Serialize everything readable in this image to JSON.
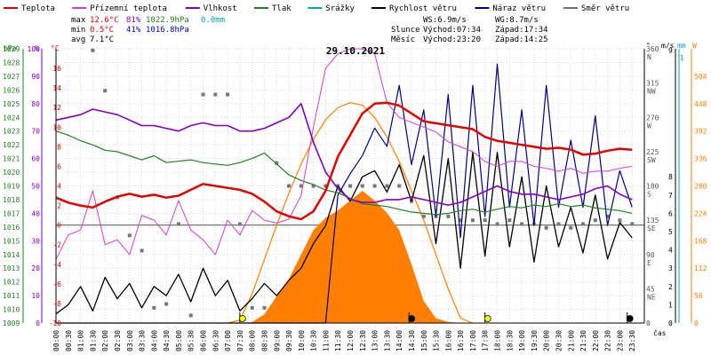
{
  "chart_data": {
    "type": "line",
    "title": "29.10.2021",
    "legend": [
      {
        "name": "Teplota",
        "color": "#e00000"
      },
      {
        "name": "Přízemní teplota",
        "color": "#d040d0"
      },
      {
        "name": "Vlhkost",
        "color": "#8000c0"
      },
      {
        "name": "Tlak",
        "color": "#208020"
      },
      {
        "name": "Srážky",
        "color": "#00a0c0"
      },
      {
        "name": "Rychlost větru",
        "color": "#000000"
      },
      {
        "name": "Náraz větru",
        "color": "#000080"
      },
      {
        "name": "Směr větru",
        "color": "#707070"
      }
    ],
    "stats": {
      "max_label": "max",
      "max_temp": "12.6°C",
      "max_hum": "81%",
      "max_press": "1022.9hPa",
      "max_rain": "0.0mm",
      "min_label": "min",
      "min_temp": "0.5°C",
      "min_hum": "41%",
      "min_press": "1016.8hPa",
      "avg_label": "avg",
      "avg_temp": "7.1°C",
      "ws": "WS:6.9m/s",
      "wg": "WG:8.7m/s",
      "sun_label": "Slunce",
      "sun_rise": "Východ:07:34",
      "sun_set": "Západ:17:34",
      "moon_label": "Měsíc",
      "moon_rise": "Východ:23:20",
      "moon_set": "Západ:14:25"
    },
    "axes": {
      "hpa_label": "hPa",
      "pct_label": "%",
      "degc_label": "°C",
      "deg_label": "°",
      "ms_label": "m/s",
      "mm_label": "mm",
      "wm2_label": "W",
      "hpa_ticks": [
        "1029",
        "1028",
        "1027",
        "1026",
        "1025",
        "1024",
        "1023",
        "1022",
        "1021",
        "1020",
        "1019",
        "1018",
        "1017",
        "1016",
        "1015",
        "1014",
        "1013",
        "1012",
        "1011",
        "1010",
        "1009"
      ],
      "pct_ticks": [
        "100",
        "90",
        "80",
        "70",
        "60",
        "50",
        "40",
        "30",
        "20",
        "10",
        "0"
      ],
      "degc_ticks": [
        "16",
        "14",
        "12",
        "10",
        "8",
        "6",
        "4",
        "2",
        "0",
        "-2",
        "-4",
        "-6",
        "-8",
        "-10"
      ],
      "dir_ticks": [
        {
          "deg": "360",
          "lbl": "N"
        },
        {
          "deg": "315",
          "lbl": "NW"
        },
        {
          "deg": "270",
          "lbl": "W"
        },
        {
          "deg": "225",
          "lbl": "SW"
        },
        {
          "deg": "180",
          "lbl": "S"
        },
        {
          "deg": "135",
          "lbl": "SE"
        },
        {
          "deg": "90",
          "lbl": "E"
        },
        {
          "deg": "45",
          "lbl": "NE"
        },
        {
          "deg": "0",
          "lbl": ""
        }
      ],
      "ms_ticks": [
        "9",
        "8",
        "7",
        "6",
        "5",
        "4",
        "3",
        "2",
        "1",
        "0"
      ],
      "mm_top": "1",
      "wm2_ticks": [
        "504",
        "448",
        "392",
        "336",
        "280",
        "224",
        "168",
        "112",
        "56",
        "0"
      ],
      "time_ticks": [
        "00:00",
        "00:30",
        "01:00",
        "01:30",
        "02:00",
        "02:30",
        "03:00",
        "03:30",
        "04:00",
        "04:30",
        "05:00",
        "05:30",
        "06:00",
        "06:30",
        "07:00",
        "07:30",
        "08:00",
        "08:30",
        "09:00",
        "09:30",
        "10:00",
        "10:30",
        "11:00",
        "11:30",
        "12:00",
        "12:30",
        "13:00",
        "13:30",
        "14:00",
        "14:30",
        "15:00",
        "15:30",
        "16:00",
        "16:30",
        "17:00",
        "17:30",
        "18:00",
        "18:30",
        "19:00",
        "19:30",
        "20:00",
        "20:30",
        "21:00",
        "21:30",
        "22:00",
        "22:30",
        "23:00",
        "23:30"
      ],
      "time_label": "čas"
    },
    "temperature": [
      2.8,
      2.3,
      2.0,
      1.8,
      2.4,
      2.9,
      3.2,
      2.9,
      3.1,
      2.8,
      3.0,
      3.6,
      4.2,
      4.0,
      3.8,
      3.6,
      3.2,
      2.4,
      1.4,
      0.9,
      0.6,
      1.4,
      3.5,
      7.0,
      9.2,
      11.4,
      12.4,
      12.5,
      12.2,
      11.4,
      10.6,
      10.4,
      10.2,
      10.0,
      9.8,
      9.0,
      8.6,
      8.4,
      8.2,
      8.0,
      7.8,
      7.9,
      7.7,
      7.2,
      7.3,
      7.6,
      7.8,
      7.7
    ],
    "ground_temp": [
      -3.5,
      -1.0,
      -0.5,
      3.5,
      -2.0,
      -1.5,
      -3.0,
      1.0,
      0.5,
      -1.0,
      2.5,
      -0.5,
      -1.5,
      -3.0,
      0.5,
      -1.0,
      1.5,
      0.5,
      0.2,
      0.6,
      3.0,
      10.0,
      16.0,
      17.5,
      18.0,
      18.0,
      17.5,
      12.5,
      11.0,
      10.5,
      10.0,
      9.5,
      8.5,
      8.0,
      7.5,
      6.5,
      6.0,
      6.5,
      6.5,
      6.0,
      5.8,
      5.5,
      5.8,
      5.3,
      5.5,
      5.5,
      5.8,
      6.0
    ],
    "humidity": [
      74,
      75,
      76,
      78,
      77,
      76,
      74,
      72,
      72,
      71,
      70,
      72,
      73,
      72,
      72,
      70,
      70,
      71,
      73,
      75,
      80,
      66,
      55,
      49,
      45,
      44,
      44,
      45,
      45,
      46,
      45,
      44,
      43,
      44,
      46,
      48,
      50,
      48,
      47,
      47,
      46,
      45,
      46,
      47,
      49,
      50,
      47,
      45
    ],
    "pressure": [
      1023.0,
      1022.7,
      1022.3,
      1022.0,
      1021.6,
      1021.5,
      1021.2,
      1020.9,
      1021.2,
      1020.7,
      1020.8,
      1020.9,
      1020.7,
      1020.6,
      1020.5,
      1020.7,
      1021.0,
      1021.4,
      1020.6,
      1019.8,
      1019.4,
      1019.1,
      1018.7,
      1018.5,
      1018.1,
      1017.7,
      1017.6,
      1017.5,
      1017.3,
      1017.1,
      1017.0,
      1016.9,
      1017.0,
      1017.2,
      1017.3,
      1017.1,
      1017.3,
      1017.5,
      1017.4,
      1017.6,
      1017.5,
      1017.7,
      1017.5,
      1017.6,
      1017.4,
      1017.3,
      1017.2,
      1017.0
    ],
    "wind_speed": [
      0.3,
      0.6,
      1.2,
      0.4,
      1.5,
      0.8,
      1.3,
      0.5,
      1.2,
      0.9,
      1.6,
      0.7,
      1.8,
      0.9,
      1.4,
      0.4,
      0.8,
      1.3,
      0.9,
      1.4,
      1.8,
      2.6,
      3.2,
      4.5,
      4.0,
      4.8,
      5.0,
      4.3,
      5.2,
      4.0,
      5.5,
      2.6,
      5.4,
      1.8,
      5.6,
      2.2,
      5.6,
      2.5,
      4.8,
      2.0,
      4.5,
      2.5,
      3.8,
      2.3,
      4.2,
      2.1,
      3.3,
      2.8
    ],
    "wind_gust": [
      0,
      0,
      0,
      0,
      0,
      0,
      0,
      0,
      0,
      0,
      0,
      0,
      0,
      0,
      0,
      0,
      0,
      0,
      0,
      0,
      0,
      0,
      0,
      4.2,
      4.9,
      5.5,
      6.4,
      5.8,
      7.8,
      5.2,
      7.0,
      3.5,
      7.5,
      2.8,
      7.8,
      3.5,
      8.5,
      3.8,
      7.0,
      3.2,
      7.8,
      3.8,
      6.0,
      3.8,
      6.8,
      3.2,
      5.0,
      3.8
    ],
    "wind_dir": [
      null,
      null,
      null,
      358,
      305,
      165,
      115,
      95,
      20,
      25,
      130,
      10,
      300,
      300,
      300,
      130,
      20,
      20,
      210,
      180,
      180,
      180,
      180,
      180,
      180,
      180,
      180,
      180,
      180,
      160,
      140,
      140,
      140,
      135,
      135,
      135,
      130,
      135,
      130,
      130,
      125,
      130,
      125,
      130,
      135,
      140,
      135,
      130
    ],
    "solar": [
      0,
      0,
      0,
      0,
      0,
      0,
      0,
      0,
      0,
      0,
      0,
      0,
      0,
      0,
      0,
      0,
      2,
      18,
      55,
      90,
      140,
      190,
      215,
      230,
      250,
      270,
      250,
      225,
      190,
      120,
      45,
      10,
      2,
      0,
      0,
      0,
      0,
      0,
      0,
      0,
      0,
      0,
      0,
      0,
      0,
      0,
      0,
      0
    ],
    "solar_max": [
      0,
      0,
      0,
      0,
      0,
      0,
      0,
      0,
      0,
      0,
      0,
      0,
      0,
      0,
      0,
      6,
      60,
      130,
      200,
      265,
      325,
      375,
      415,
      440,
      450,
      445,
      420,
      380,
      330,
      270,
      210,
      140,
      70,
      10,
      0,
      0,
      0,
      0,
      0,
      0,
      0,
      0,
      0,
      0,
      0,
      0,
      0,
      0
    ],
    "markers": [
      {
        "x": 7.5,
        "type": "sunrise",
        "color": "#ffff00"
      },
      {
        "x": 14.4,
        "type": "moonset",
        "color": "#000000"
      },
      {
        "x": 17.5,
        "type": "sunset",
        "color": "#ffff00"
      },
      {
        "x": 23.3,
        "type": "moonrise",
        "color": "#000000"
      }
    ]
  }
}
